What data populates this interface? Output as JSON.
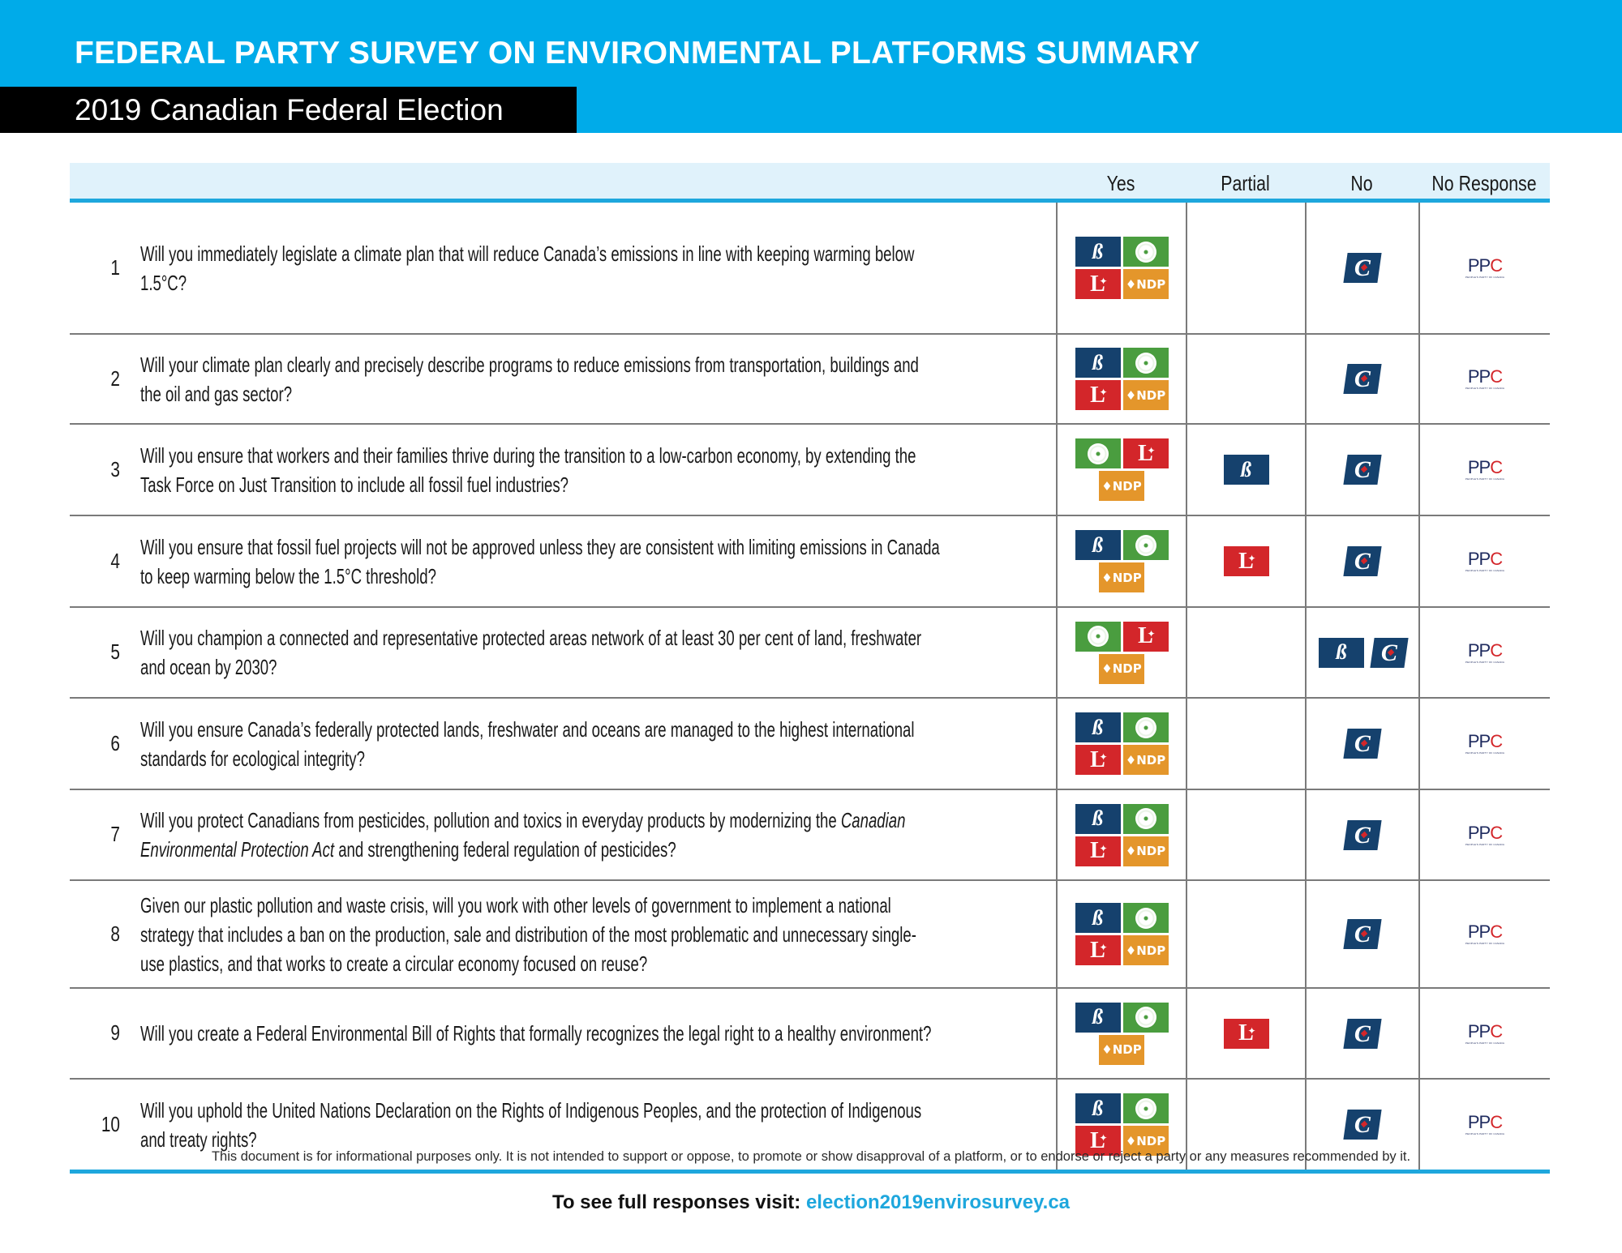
{
  "header": {
    "title": "FEDERAL PARTY SURVEY ON ENVIRONMENTAL PLATFORMS SUMMARY",
    "subtitle": "2019 Canadian Federal Election"
  },
  "colors": {
    "banner": "#00abe9",
    "accent_line": "#1ea7dd",
    "header_band": "#e0f2fb",
    "bloc": "#15416d",
    "green": "#4a9d3f",
    "liberal": "#d3262a",
    "ndp": "#e4962b",
    "conservative": "#15416d",
    "ppc": "#1e2a5e"
  },
  "parties": {
    "bloc": {
      "name": "Bloc Québécois",
      "icon": "bloc-logo-icon",
      "glyph": "ß"
    },
    "green": {
      "name": "Green Party",
      "icon": "green-flower-logo-icon"
    },
    "liberal": {
      "name": "Liberal Party",
      "icon": "liberal-logo-icon",
      "glyph": "L",
      "leaf": "✦"
    },
    "ndp": {
      "name": "NDP",
      "icon": "ndp-logo-icon",
      "glyph": "♦NDP"
    },
    "conservative": {
      "name": "Conservative Party",
      "icon": "conservative-logo-icon",
      "glyph": "C"
    },
    "ppc": {
      "name": "People's Party of Canada",
      "icon": "ppc-logo-icon",
      "glyph_main": "PP",
      "glyph_c": "C",
      "subtext": "PEOPLE'S PARTY OF CANADA"
    }
  },
  "table": {
    "columns": [
      "Yes",
      "Partial",
      "No",
      "No Response"
    ],
    "rows": [
      {
        "num": "1",
        "question": "Will you immediately legislate a climate plan that will reduce Canada’s emissions in line with keeping warming below 1.5°C?",
        "yes": [
          "bloc",
          "green",
          "liberal",
          "ndp"
        ],
        "partial": [],
        "no": [
          "conservative"
        ],
        "no_response": [
          "ppc"
        ]
      },
      {
        "num": "2",
        "question": "Will your climate plan clearly and precisely describe programs to reduce emissions from transportation, buildings and the oil and gas sector?",
        "yes": [
          "bloc",
          "green",
          "liberal",
          "ndp"
        ],
        "partial": [],
        "no": [
          "conservative"
        ],
        "no_response": [
          "ppc"
        ]
      },
      {
        "num": "3",
        "question": "Will you ensure that workers and their families thrive during the transition to a low-carbon economy, by extending the Task Force on Just Transition to include all fossil fuel industries?",
        "yes": [
          "green",
          "liberal",
          "ndp"
        ],
        "partial": [
          "bloc"
        ],
        "no": [
          "conservative"
        ],
        "no_response": [
          "ppc"
        ]
      },
      {
        "num": "4",
        "question": "Will you ensure that fossil fuel projects will not be approved unless they are consistent with limiting emissions in Canada to keep warming below the 1.5°C threshold?",
        "yes": [
          "bloc",
          "green",
          "ndp"
        ],
        "partial": [
          "liberal"
        ],
        "no": [
          "conservative"
        ],
        "no_response": [
          "ppc"
        ]
      },
      {
        "num": "5",
        "question": "Will you champion a connected and representative protected areas network of at least 30 per cent of land, freshwater and ocean by 2030?",
        "yes": [
          "green",
          "liberal",
          "ndp"
        ],
        "partial": [],
        "no": [
          "bloc",
          "conservative"
        ],
        "no_response": [
          "ppc"
        ]
      },
      {
        "num": "6",
        "question": "Will you ensure Canada’s federally protected lands, freshwater and oceans are managed to the highest international standards for ecological integrity?",
        "yes": [
          "bloc",
          "green",
          "liberal",
          "ndp"
        ],
        "partial": [],
        "no": [
          "conservative"
        ],
        "no_response": [
          "ppc"
        ]
      },
      {
        "num": "7",
        "question_pre": "Will you protect Canadians from pesticides, pollution and toxics in everyday products by modernizing the ",
        "question_italic": "Canadian Environmental Protection Act",
        "question_post": " and strengthening federal regulation of pesticides?",
        "yes": [
          "bloc",
          "green",
          "liberal",
          "ndp"
        ],
        "partial": [],
        "no": [
          "conservative"
        ],
        "no_response": [
          "ppc"
        ]
      },
      {
        "num": "8",
        "question": "Given our plastic pollution and waste crisis, will you work with other levels of government to implement a national strategy that includes a ban on the production, sale and distribution of the most problematic and unnecessary single-use plastics, and that works to create a circular economy focused on reuse?",
        "yes": [
          "bloc",
          "green",
          "liberal",
          "ndp"
        ],
        "partial": [],
        "no": [
          "conservative"
        ],
        "no_response": [
          "ppc"
        ]
      },
      {
        "num": "9",
        "question": "Will you create a Federal Environmental Bill of Rights that formally recognizes the legal right to a healthy environment?",
        "yes": [
          "bloc",
          "green",
          "ndp"
        ],
        "partial": [
          "liberal"
        ],
        "no": [
          "conservative"
        ],
        "no_response": [
          "ppc"
        ]
      },
      {
        "num": "10",
        "question": "Will you uphold the United Nations Declaration on the Rights of Indigenous Peoples, and the protection of Indigenous and treaty rights?",
        "yes": [
          "bloc",
          "green",
          "liberal",
          "ndp"
        ],
        "partial": [],
        "no": [
          "conservative"
        ],
        "no_response": [
          "ppc"
        ]
      }
    ]
  },
  "footer": {
    "disclaimer": "This document is for informational purposes only. It is not intended to support or oppose, to promote or show disapproval of a platform, or to endorse or reject a party or any measures recommended by it.",
    "cta_label": "To see full responses visit:",
    "cta_link": "election2019envirosurvey.ca"
  }
}
